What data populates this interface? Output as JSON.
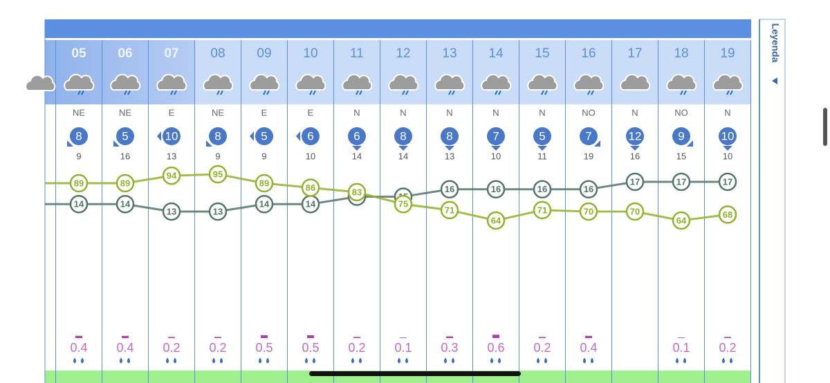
{
  "legend_label": "Leyenda",
  "chart_data": {
    "type": "line",
    "categories": [
      "05",
      "06",
      "07",
      "08",
      "09",
      "10",
      "11",
      "12",
      "13",
      "14",
      "15",
      "16",
      "17",
      "18",
      "19"
    ],
    "series": [
      {
        "color": "#93b12a",
        "values": [
          89,
          89,
          94,
          95,
          89,
          86,
          83,
          75,
          71,
          64,
          71,
          70,
          70,
          64,
          68
        ]
      },
      {
        "color": "#537567",
        "values": [
          14,
          14,
          13,
          13,
          14,
          14,
          15,
          15,
          16,
          16,
          16,
          16,
          17,
          17,
          17
        ]
      }
    ],
    "wind_directions": [
      "NE",
      "NE",
      "E",
      "NE",
      "E",
      "E",
      "N",
      "N",
      "N",
      "N",
      "N",
      "NO",
      "N",
      "NO",
      "N"
    ],
    "wind_speeds": [
      8,
      5,
      10,
      8,
      5,
      6,
      6,
      8,
      8,
      7,
      5,
      7,
      12,
      9,
      10
    ],
    "wind_gusts": [
      9,
      16,
      13,
      9,
      9,
      10,
      14,
      14,
      13,
      10,
      11,
      19,
      16,
      15,
      10
    ],
    "precipitation": {
      "color": "#b03cb0",
      "values": [
        0.4,
        0.4,
        0.2,
        0.2,
        0.5,
        0.5,
        0.2,
        0.1,
        0.3,
        0.6,
        0.2,
        0.4,
        null,
        0.1,
        0.2
      ]
    }
  }
}
